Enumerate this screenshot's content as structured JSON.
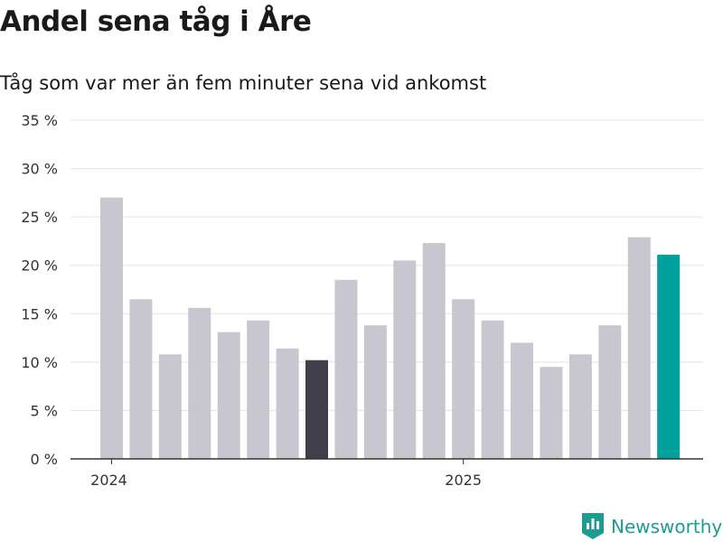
{
  "header": {
    "title": "Andel sena tåg i Åre",
    "subtitle": "Tåg som var mer än fem minuter sena vid ankomst"
  },
  "brand": {
    "name": "Newsworthy",
    "icon": "newsworthy-logo-icon",
    "color": "#1f9c91"
  },
  "colors": {
    "bar_default": "#c8c7d0",
    "bar_highlight_dark": "#3f3e4a",
    "bar_highlight_teal": "#00a19a",
    "grid": "#e3e3e3",
    "axis": "#333333"
  },
  "chart_data": {
    "type": "bar",
    "title": "Andel sena tåg i Åre",
    "subtitle": "Tåg som var mer än fem minuter sena vid ankomst",
    "xlabel": "",
    "ylabel": "",
    "ylim": [
      0,
      35
    ],
    "yticks": [
      0,
      5,
      10,
      15,
      20,
      25,
      30,
      35
    ],
    "ytick_labels": [
      "0 %",
      "5 %",
      "10 %",
      "15 %",
      "20 %",
      "25 %",
      "30 %",
      "35 %"
    ],
    "x_tick_labels": [
      "2024",
      "2025"
    ],
    "x_tick_positions": [
      0,
      12
    ],
    "grid": true,
    "values": [
      27.0,
      16.5,
      10.8,
      15.6,
      13.1,
      14.3,
      11.4,
      10.2,
      18.5,
      13.8,
      20.5,
      22.3,
      16.5,
      14.3,
      12.0,
      9.5,
      10.8,
      13.8,
      22.9,
      21.1
    ],
    "highlight": {
      "dark": [
        7
      ],
      "teal": [
        19
      ]
    }
  }
}
